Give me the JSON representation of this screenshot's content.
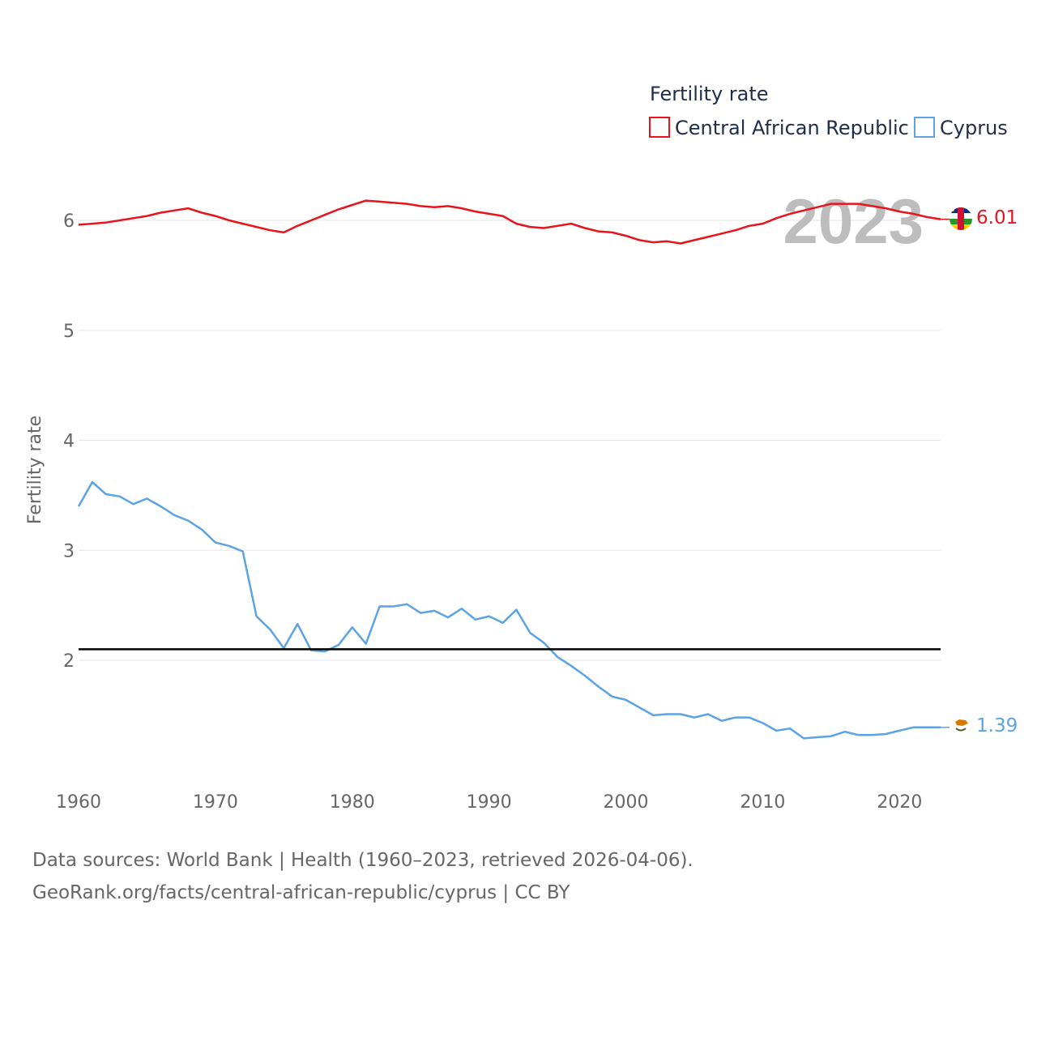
{
  "chart_data": {
    "type": "line",
    "ylabel": "Fertility rate",
    "legend_title": "Fertility rate",
    "year_label": "2023",
    "x_ticks": [
      "1960",
      "1970",
      "1980",
      "1990",
      "2000",
      "2010",
      "2020"
    ],
    "y_ticks": [
      "2",
      "3",
      "4",
      "5",
      "6"
    ],
    "xlim": [
      1960,
      2023
    ],
    "ylim": [
      1.0,
      6.5
    ],
    "reference_line": {
      "value": 2.1
    },
    "x": [
      1960,
      1961,
      1962,
      1963,
      1964,
      1965,
      1966,
      1967,
      1968,
      1969,
      1970,
      1971,
      1972,
      1973,
      1974,
      1975,
      1976,
      1977,
      1978,
      1979,
      1980,
      1981,
      1982,
      1983,
      1984,
      1985,
      1986,
      1987,
      1988,
      1989,
      1990,
      1991,
      1992,
      1993,
      1994,
      1995,
      1996,
      1997,
      1998,
      1999,
      2000,
      2001,
      2002,
      2003,
      2004,
      2005,
      2006,
      2007,
      2008,
      2009,
      2010,
      2011,
      2012,
      2013,
      2014,
      2015,
      2016,
      2017,
      2018,
      2019,
      2020,
      2021,
      2022,
      2023
    ],
    "series": [
      {
        "name": "Central African Republic",
        "color": "#e8141c",
        "end_label": "6.01",
        "values": [
          5.96,
          5.97,
          5.98,
          6.0,
          6.02,
          6.04,
          6.07,
          6.09,
          6.11,
          6.07,
          6.04,
          6.0,
          5.97,
          5.94,
          5.91,
          5.89,
          5.95,
          6.0,
          6.05,
          6.1,
          6.14,
          6.18,
          6.17,
          6.16,
          6.15,
          6.13,
          6.12,
          6.13,
          6.11,
          6.08,
          6.06,
          6.04,
          5.97,
          5.94,
          5.93,
          5.95,
          5.97,
          5.93,
          5.9,
          5.89,
          5.86,
          5.82,
          5.8,
          5.81,
          5.79,
          5.82,
          5.85,
          5.88,
          5.91,
          5.95,
          5.97,
          6.02,
          6.06,
          6.09,
          6.12,
          6.15,
          6.15,
          6.15,
          6.13,
          6.11,
          6.08,
          6.06,
          6.03,
          6.01
        ]
      },
      {
        "name": "Cyprus",
        "color": "#5ba3e5",
        "end_label": "1.39",
        "values": [
          3.4,
          3.62,
          3.51,
          3.49,
          3.42,
          3.47,
          3.4,
          3.32,
          3.27,
          3.19,
          3.07,
          3.04,
          2.99,
          2.4,
          2.28,
          2.11,
          2.33,
          2.09,
          2.08,
          2.14,
          2.3,
          2.15,
          2.49,
          2.49,
          2.51,
          2.43,
          2.45,
          2.39,
          2.47,
          2.37,
          2.4,
          2.34,
          2.46,
          2.25,
          2.16,
          2.03,
          1.95,
          1.86,
          1.76,
          1.67,
          1.64,
          1.57,
          1.5,
          1.51,
          1.51,
          1.48,
          1.51,
          1.45,
          1.48,
          1.48,
          1.43,
          1.36,
          1.38,
          1.29,
          1.3,
          1.31,
          1.35,
          1.32,
          1.32,
          1.33,
          1.36,
          1.39,
          1.39,
          1.39
        ]
      }
    ]
  },
  "footer": {
    "line1": "Data sources: World Bank | Health (1960–2023, retrieved 2026-04-06).",
    "line2": "GeoRank.org/facts/central-african-republic/cyprus | CC BY"
  }
}
